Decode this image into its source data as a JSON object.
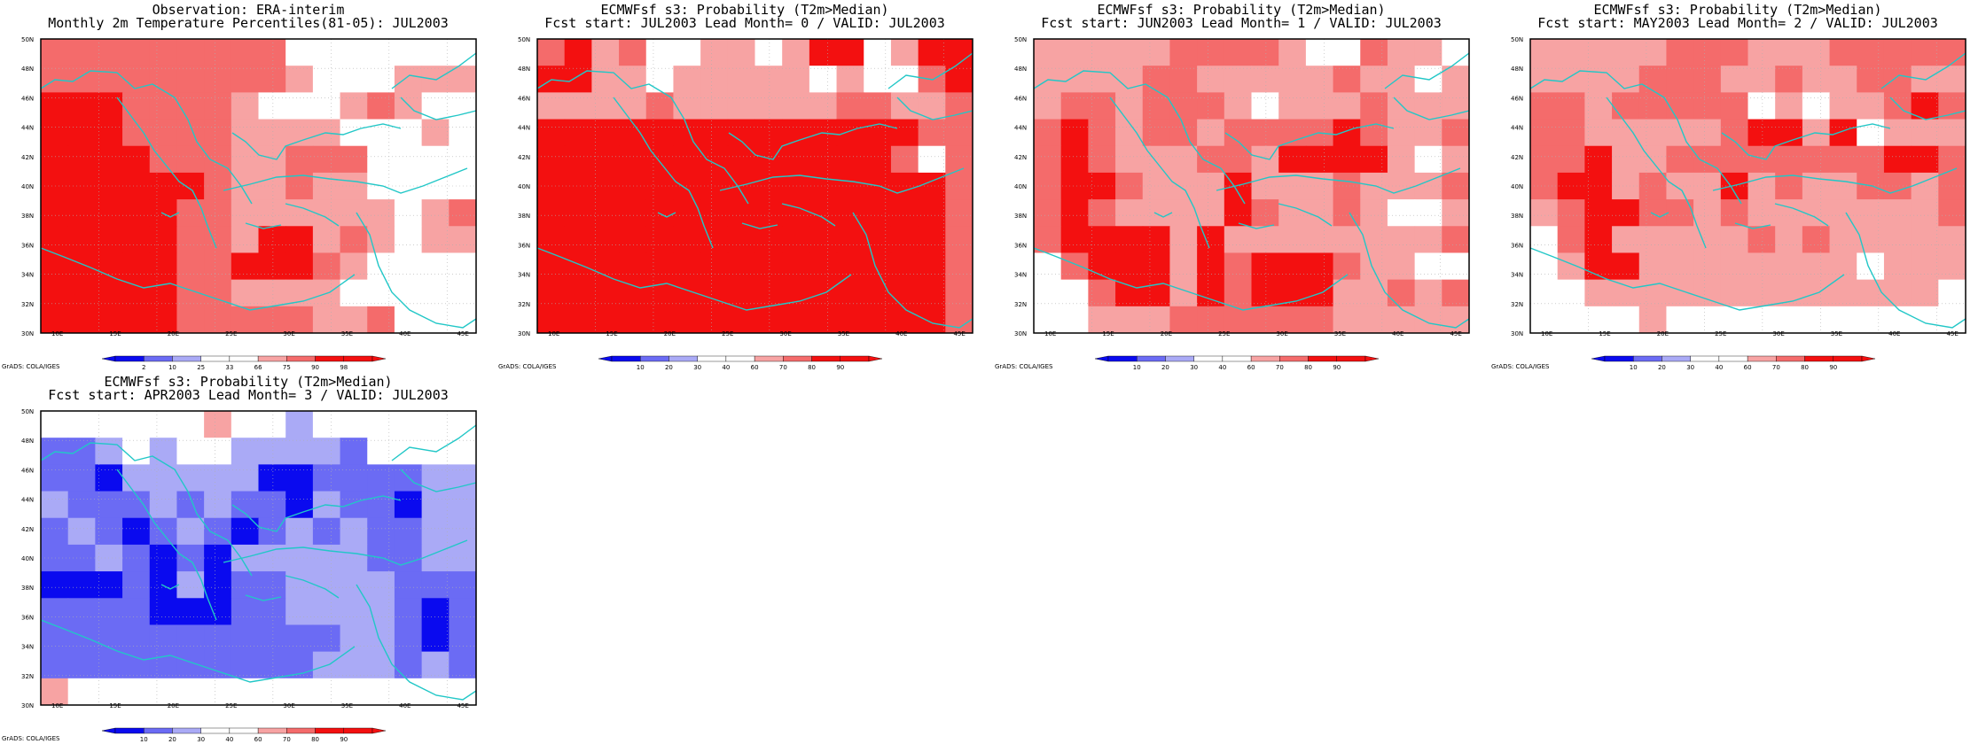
{
  "credit": "GrADS: COLA/IGES",
  "lat_labels": [
    "50N",
    "48N",
    "46N",
    "44N",
    "42N",
    "40N",
    "38N",
    "36N",
    "34N",
    "32N",
    "30N"
  ],
  "lon_labels": [
    "10E",
    "15E",
    "20E",
    "25E",
    "30E",
    "35E",
    "40E",
    "45E"
  ],
  "colors": {
    "d_blue": "#0a0aef",
    "m_blue": "#6b6bf4",
    "l_blue": "#aaaaf6",
    "white": "#ffffff",
    "l_red": "#f7a3a3",
    "m_red": "#f46b6b",
    "d_red": "#f31010",
    "coast": "#22c7c7"
  },
  "panels": [
    {
      "title_line1": "Observation: ERA-interim",
      "title_line2": "Monthly 2m Temperature Percentiles(81-05): JUL2003",
      "colorbar_labels": [
        "2",
        "10",
        "25",
        "33",
        "66",
        "75",
        "90",
        "98"
      ],
      "grid": [
        "MMMMMMMMMWWWWWWW",
        "MMMMMMMMMLWWWLLL",
        "DDDMMMMLWWWLMLWW",
        "DDDMMMMLLLLWWWLW",
        "DDDDMMMLLMMMWWWW",
        "DDDDDDMLLMLLWWWW",
        "DDDDDMMLLLLLLWLM",
        "DDDDDMMLDDLMLWLL",
        "DDDDDMMDDDMLWWWW",
        "DDDDDMMLLLLWWWWW",
        "DDDDDMMMMMLLMWWW"
      ]
    },
    {
      "title_line1": "ECMWFsf s3: Probability (T2m>Median)",
      "title_line2": "Fcst start: JUL2003  Lead Month= 0 / VALID: JUL2003",
      "colorbar_labels": [
        "10",
        "20",
        "30",
        "40",
        "60",
        "70",
        "80",
        "90"
      ],
      "grid": [
        "MDLMWWLLWLDDWLDD",
        "DDLLWLLLLLWLWWMD",
        "LLLLMLLLLLLMMLLM",
        "DDDDDDDDDDDDDDMM",
        "DDDDDDDDDDDDDMWM",
        "DDDDDDDDDDDDDDDM",
        "DDDDDDDDDDDDDDDM",
        "DDDDDDDDDDDDDDDM",
        "DDDDDDDDDDDDDDDM",
        "DDDDDDDDDDDDDDDM",
        "DDDDDDDDDDDDDDDM"
      ]
    },
    {
      "title_line1": "ECMWFsf s3: Probability (T2m>Median)",
      "title_line2": "Fcst start: JUN2003  Lead Month= 1 / VALID: JUL2003",
      "colorbar_labels": [
        "10",
        "20",
        "30",
        "40",
        "60",
        "70",
        "80",
        "90"
      ],
      "grid": [
        "LLLLLMMMMLWWMLLW",
        "LLLLMMLLLLLMLLWL",
        "LMMLMMMLWLLLMLLL",
        "MDMLMMLMMMMDMLLM",
        "MDMLLLMMLDDDDLWL",
        "MDDMLLLDLLLMLLLM",
        "MDMLLLLDMLLMLWWL",
        "MDDDDLDLLLLLLLLM",
        "WMDDDLDMDDDMLLWW",
        "WWMDDLDMDDDLLMLM",
        "WWLLLMMMMMMLLLLL"
      ]
    },
    {
      "title_line1": "ECMWFsf s3: Probability (T2m>Median)",
      "title_line2": "Fcst start: MAY2003  Lead Month= 2 / VALID: JUL2003",
      "colorbar_labels": [
        "10",
        "20",
        "30",
        "40",
        "60",
        "70",
        "80",
        "90"
      ],
      "grid": [
        "LLLLLMMMLLLMMMMM",
        "LLLLMMMLLMLLMMLL",
        "MMLMMMMMWLWLLMDM",
        "MMLLLLLMDDLDWLLL",
        "MMDLLMMMMMMMMDDM",
        "MDDLMLLDLMLLMMLM",
        "LMDDMMLMLLLLLLLM",
        "WMDLLLLLMLMLLLLL",
        "WLDDLLLLLLLLWLLL",
        "WWLLLLLLLLLLLLLW",
        "WWWWLWWWWWWWWWWW"
      ]
    },
    {
      "title_line1": "ECMWFsf s3: Probability (T2m>Median)",
      "title_line2": "Fcst start: APR2003  Lead Month= 3 / VALID: JUL2003",
      "colorbar_labels": [
        "10",
        "20",
        "30",
        "40",
        "60",
        "70",
        "80",
        "90"
      ],
      "grid": [
        "WWWWWWLWWLWWWWWW",
        "MMLWLWWLLLLMWWWW",
        "MMDLLLLLDDMMMMLL",
        "LMMMLMLMMDLMMDLL",
        "MLMDMLMDMLMLMMLL",
        "MMLMDMDLLLLLMMLL",
        "DDDMDLDMMLLLLMMM",
        "MMMMDDDMMLLLLMDM",
        "MMMMMMMMMMMLLMDM",
        "MMMMMMMMMMLLLMLM",
        "LWWWWWWWWWWWWWWW"
      ]
    }
  ]
}
